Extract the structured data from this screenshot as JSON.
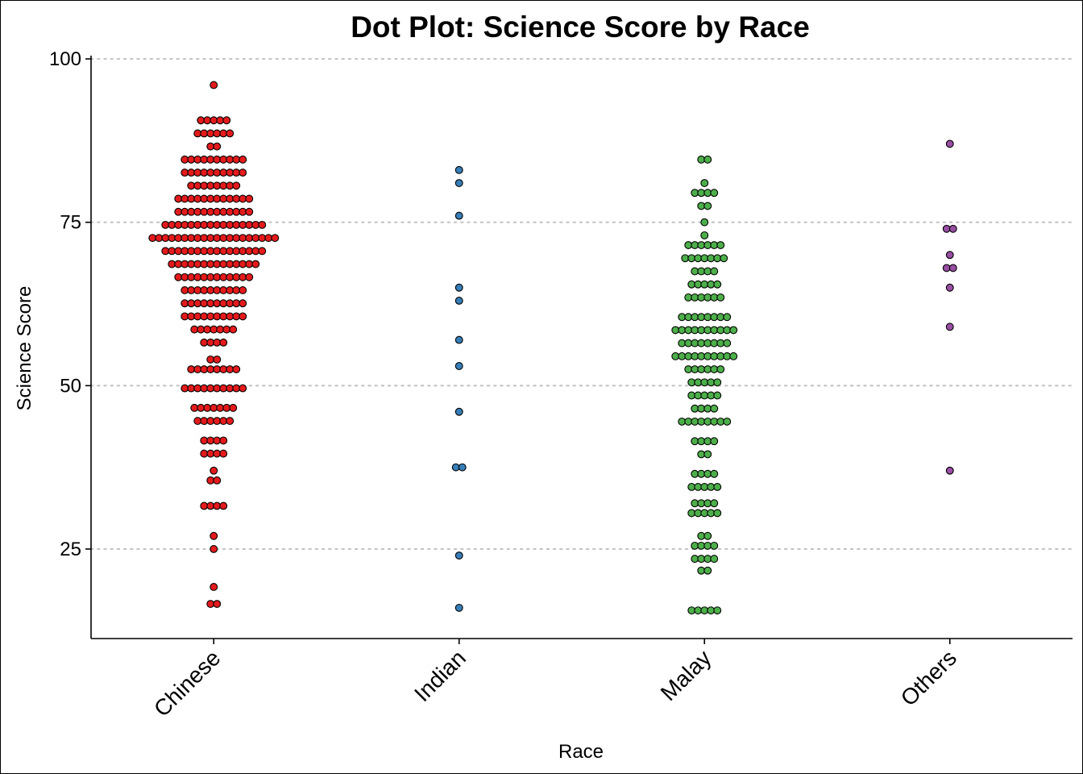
{
  "chart_data": {
    "type": "dotplot",
    "title": "Dot Plot: Science Score by Race",
    "xlabel": "Race",
    "ylabel": "Science Score",
    "categories": [
      "Chinese",
      "Indian",
      "Malay",
      "Others"
    ],
    "colors": {
      "Chinese": "#E41A1C",
      "Indian": "#377EB8",
      "Malay": "#4DAF4A",
      "Others": "#984EA3"
    },
    "ylim": [
      11.3,
      100.5
    ],
    "yticks": [
      25,
      50,
      75,
      100
    ],
    "grid": "horizontal dotted at major ticks",
    "bins": {
      "Chinese": [
        {
          "y": 96.0,
          "count": 1
        },
        {
          "y": 90.6,
          "count": 5
        },
        {
          "y": 88.6,
          "count": 6
        },
        {
          "y": 86.6,
          "count": 2
        },
        {
          "y": 84.6,
          "count": 10
        },
        {
          "y": 82.6,
          "count": 10
        },
        {
          "y": 80.6,
          "count": 8
        },
        {
          "y": 78.6,
          "count": 12
        },
        {
          "y": 76.6,
          "count": 12
        },
        {
          "y": 74.6,
          "count": 16
        },
        {
          "y": 72.6,
          "count": 20
        },
        {
          "y": 70.6,
          "count": 16
        },
        {
          "y": 68.6,
          "count": 14
        },
        {
          "y": 66.6,
          "count": 12
        },
        {
          "y": 64.6,
          "count": 10
        },
        {
          "y": 62.6,
          "count": 10
        },
        {
          "y": 60.6,
          "count": 10
        },
        {
          "y": 58.6,
          "count": 7
        },
        {
          "y": 56.6,
          "count": 4
        },
        {
          "y": 54.0,
          "count": 2
        },
        {
          "y": 52.5,
          "count": 8
        },
        {
          "y": 49.6,
          "count": 10
        },
        {
          "y": 46.6,
          "count": 7
        },
        {
          "y": 44.6,
          "count": 6
        },
        {
          "y": 41.6,
          "count": 4
        },
        {
          "y": 39.6,
          "count": 4
        },
        {
          "y": 37.0,
          "count": 1
        },
        {
          "y": 35.5,
          "count": 2
        },
        {
          "y": 31.6,
          "count": 4
        },
        {
          "y": 27.0,
          "count": 1
        },
        {
          "y": 25.0,
          "count": 1
        },
        {
          "y": 19.2,
          "count": 1
        },
        {
          "y": 16.6,
          "count": 2
        }
      ],
      "Indian": [
        {
          "y": 83.0,
          "count": 1
        },
        {
          "y": 81.0,
          "count": 1
        },
        {
          "y": 76.0,
          "count": 1
        },
        {
          "y": 65.0,
          "count": 1
        },
        {
          "y": 63.0,
          "count": 1
        },
        {
          "y": 57.0,
          "count": 1
        },
        {
          "y": 53.0,
          "count": 1
        },
        {
          "y": 46.0,
          "count": 1
        },
        {
          "y": 37.5,
          "count": 2
        },
        {
          "y": 24.0,
          "count": 1
        },
        {
          "y": 16.0,
          "count": 1
        }
      ],
      "Malay": [
        {
          "y": 84.6,
          "count": 2
        },
        {
          "y": 81.0,
          "count": 1
        },
        {
          "y": 79.5,
          "count": 4
        },
        {
          "y": 77.5,
          "count": 2
        },
        {
          "y": 75.0,
          "count": 1
        },
        {
          "y": 73.0,
          "count": 1
        },
        {
          "y": 71.5,
          "count": 6
        },
        {
          "y": 69.5,
          "count": 7
        },
        {
          "y": 67.5,
          "count": 4
        },
        {
          "y": 65.5,
          "count": 5
        },
        {
          "y": 63.5,
          "count": 6
        },
        {
          "y": 60.5,
          "count": 8
        },
        {
          "y": 58.5,
          "count": 10
        },
        {
          "y": 56.5,
          "count": 8
        },
        {
          "y": 54.5,
          "count": 10
        },
        {
          "y": 52.5,
          "count": 6
        },
        {
          "y": 50.5,
          "count": 5
        },
        {
          "y": 48.5,
          "count": 5
        },
        {
          "y": 46.5,
          "count": 4
        },
        {
          "y": 44.5,
          "count": 8
        },
        {
          "y": 41.5,
          "count": 4
        },
        {
          "y": 39.5,
          "count": 2
        },
        {
          "y": 36.5,
          "count": 4
        },
        {
          "y": 34.5,
          "count": 5
        },
        {
          "y": 32.0,
          "count": 4
        },
        {
          "y": 30.5,
          "count": 5
        },
        {
          "y": 27.0,
          "count": 2
        },
        {
          "y": 25.5,
          "count": 4
        },
        {
          "y": 23.5,
          "count": 4
        },
        {
          "y": 21.7,
          "count": 2
        },
        {
          "y": 15.6,
          "count": 5
        }
      ],
      "Others": [
        {
          "y": 87.0,
          "count": 1
        },
        {
          "y": 74.0,
          "count": 2
        },
        {
          "y": 70.0,
          "count": 1
        },
        {
          "y": 68.0,
          "count": 2
        },
        {
          "y": 65.0,
          "count": 1
        },
        {
          "y": 59.0,
          "count": 1
        },
        {
          "y": 37.0,
          "count": 1
        }
      ]
    }
  }
}
